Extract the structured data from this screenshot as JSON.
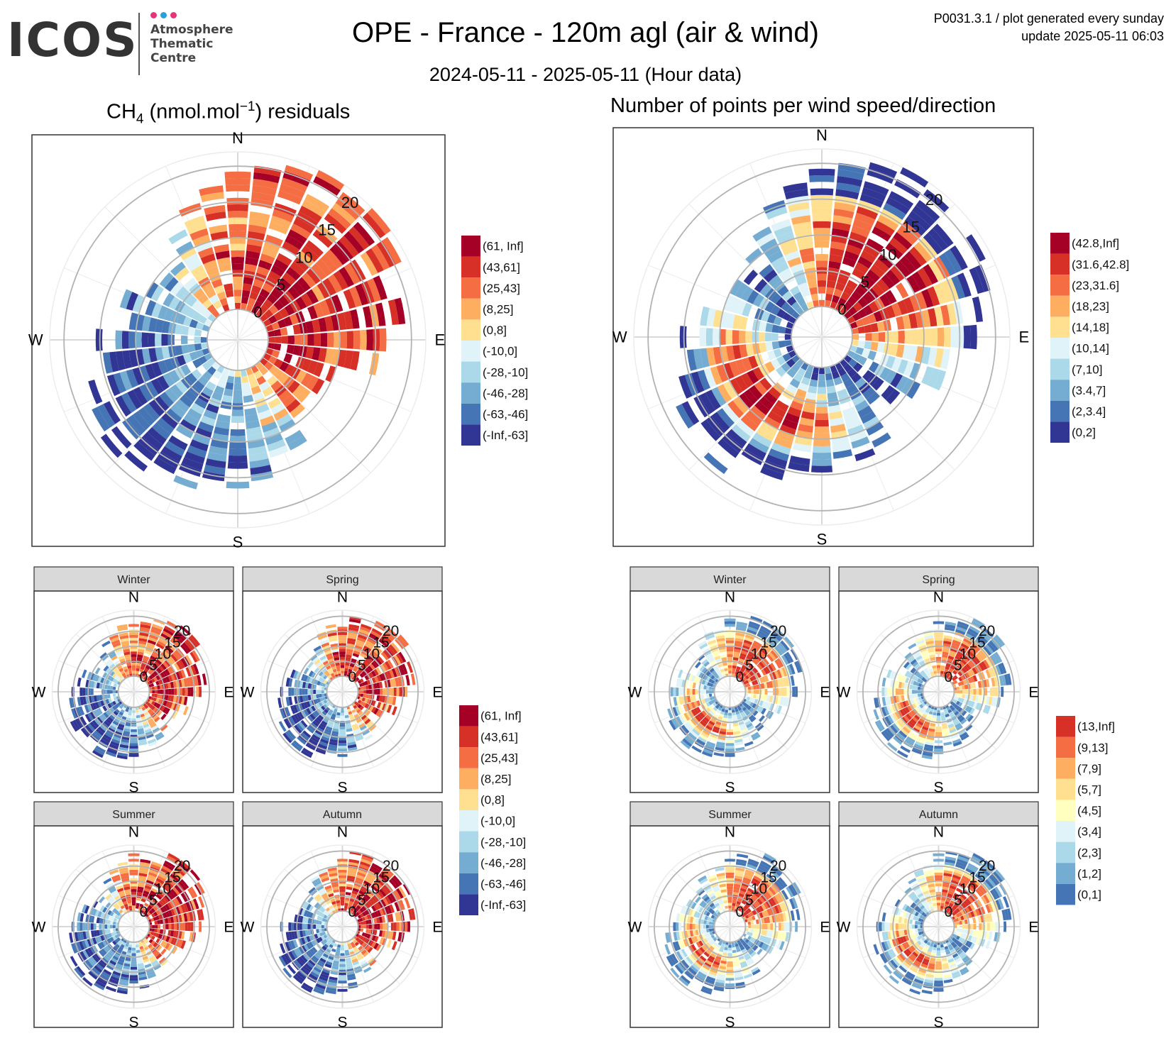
{
  "header": {
    "logo_text": "ICOS",
    "logo_subtitle": [
      "Atmosphere",
      "Thematic",
      "Centre"
    ],
    "title": "OPE - France - 120m agl (air & wind)",
    "subtitle": "2024-05-11 - 2025-05-11 (Hour data)",
    "meta_line1": "P0031.3.1 / plot generated every sunday",
    "meta_line2": "update  2025-05-11 06:03",
    "logo_dot_colors": [
      "#e6337a",
      "#2a9fd8",
      "#e6337a"
    ]
  },
  "panels": {
    "left_title_prefix": "CH",
    "left_title_sub": "4",
    "left_title_unit": " (nmol.mol",
    "left_title_sup": "−1",
    "left_title_suffix": ") residuals",
    "right_title": "Number of points per wind speed/direction"
  },
  "compass": [
    "N",
    "E",
    "S",
    "W"
  ],
  "speed_ticks": [
    "0",
    "5",
    "10",
    "15",
    "20"
  ],
  "seasons": [
    "Winter",
    "Spring",
    "Summer",
    "Autumn"
  ],
  "legends": {
    "residuals": {
      "labels": [
        "(61, Inf]",
        "(43,61]",
        "(25,43]",
        "(8,25]",
        "(0,8]",
        "(-10,0]",
        "(-28,-10]",
        "(-46,-28]",
        "(-63,-46]",
        "(-Inf,-63]"
      ],
      "colors": [
        "#a50026",
        "#d73027",
        "#f46d43",
        "#fdae61",
        "#fee090",
        "#e0f3f8",
        "#abd9e9",
        "#74add1",
        "#4575b4",
        "#313695"
      ]
    },
    "points": {
      "labels": [
        "(42.8,Inf]",
        "(31.6,42.8]",
        "(23,31.6]",
        "(18,23]",
        "(14,18]",
        "(10,14]",
        "(7,10]",
        "(3.4,7]",
        "(2,3.4]",
        "(0,2]"
      ],
      "colors": [
        "#a50026",
        "#d73027",
        "#f46d43",
        "#fdae61",
        "#fee090",
        "#e0f3f8",
        "#abd9e9",
        "#74add1",
        "#4575b4",
        "#313695"
      ]
    },
    "residuals_season": {
      "labels": [
        "(61, Inf]",
        "(43,61]",
        "(25,43]",
        "(8,25]",
        "(0,8]",
        "(-10,0]",
        "(-28,-10]",
        "(-46,-28]",
        "(-63,-46]",
        "(-Inf,-63]"
      ],
      "colors": [
        "#a50026",
        "#d73027",
        "#f46d43",
        "#fdae61",
        "#fee090",
        "#e0f3f8",
        "#abd9e9",
        "#74add1",
        "#4575b4",
        "#313695"
      ]
    },
    "points_season": {
      "labels": [
        "(13,Inf]",
        "(9,13]",
        "(7,9]",
        "(5,7]",
        "(4,5]",
        "(3,4]",
        "(2,3]",
        "(1,2]",
        "(0,1]"
      ],
      "colors": [
        "#d73027",
        "#f46d43",
        "#fdae61",
        "#fee090",
        "#ffffbf",
        "#e0f3f8",
        "#abd9e9",
        "#74add1",
        "#4575b4"
      ]
    }
  },
  "chart_data": [
    {
      "type": "heatmap",
      "name": "ch4_residuals",
      "coordinate": "polar",
      "angle": "wind direction",
      "radius": "wind speed",
      "radial_ticks": [
        0,
        5,
        10,
        15,
        20
      ],
      "radius_range": [
        0,
        22
      ],
      "sectors": [
        {
          "dir_range": [
            20,
            60
          ],
          "speed_range": [
            8,
            22
          ],
          "class": "(8,25]"
        },
        {
          "dir_range": [
            60,
            170
          ],
          "speed_range": [
            2,
            6
          ],
          "class": "(25,43]"
        },
        {
          "dir_range": [
            140,
            200
          ],
          "speed_range": [
            3,
            9
          ],
          "class": "(43,61]"
        },
        {
          "dir_range": [
            270,
            360
          ],
          "speed_range": [
            2,
            8
          ],
          "class": "(0,8]"
        },
        {
          "dir_range": [
            180,
            260
          ],
          "speed_range": [
            5,
            12
          ],
          "class": "(-28,-10]"
        },
        {
          "dir_range": [
            200,
            260
          ],
          "speed_range": [
            12,
            18
          ],
          "class": "(-63,-46]"
        },
        {
          "dir_range": [
            190,
            220
          ],
          "speed_range": [
            18,
            20
          ],
          "class": "(-Inf,-63]"
        }
      ]
    },
    {
      "type": "heatmap",
      "name": "points_per_wind",
      "coordinate": "polar",
      "angle": "wind direction",
      "radius": "wind speed",
      "radial_ticks": [
        0,
        5,
        10,
        15,
        20
      ],
      "radius_range": [
        0,
        22
      ],
      "sectors": [
        {
          "dir_range": [
            25,
            60
          ],
          "speed_range": [
            5,
            15
          ],
          "class": "(42.8,Inf]"
        },
        {
          "dir_range": [
            180,
            270
          ],
          "speed_range": [
            3,
            9
          ],
          "class": "(42.8,Inf]"
        },
        {
          "dir_range": [
            150,
            300
          ],
          "speed_range": [
            9,
            12
          ],
          "class": "(23,31.6]"
        },
        {
          "dir_range": [
            200,
            320
          ],
          "speed_range": [
            12,
            18
          ],
          "class": "(3.4,7]"
        },
        {
          "dir_range": [
            230,
            260
          ],
          "speed_range": [
            18,
            20
          ],
          "class": "(0,2]"
        }
      ]
    }
  ]
}
